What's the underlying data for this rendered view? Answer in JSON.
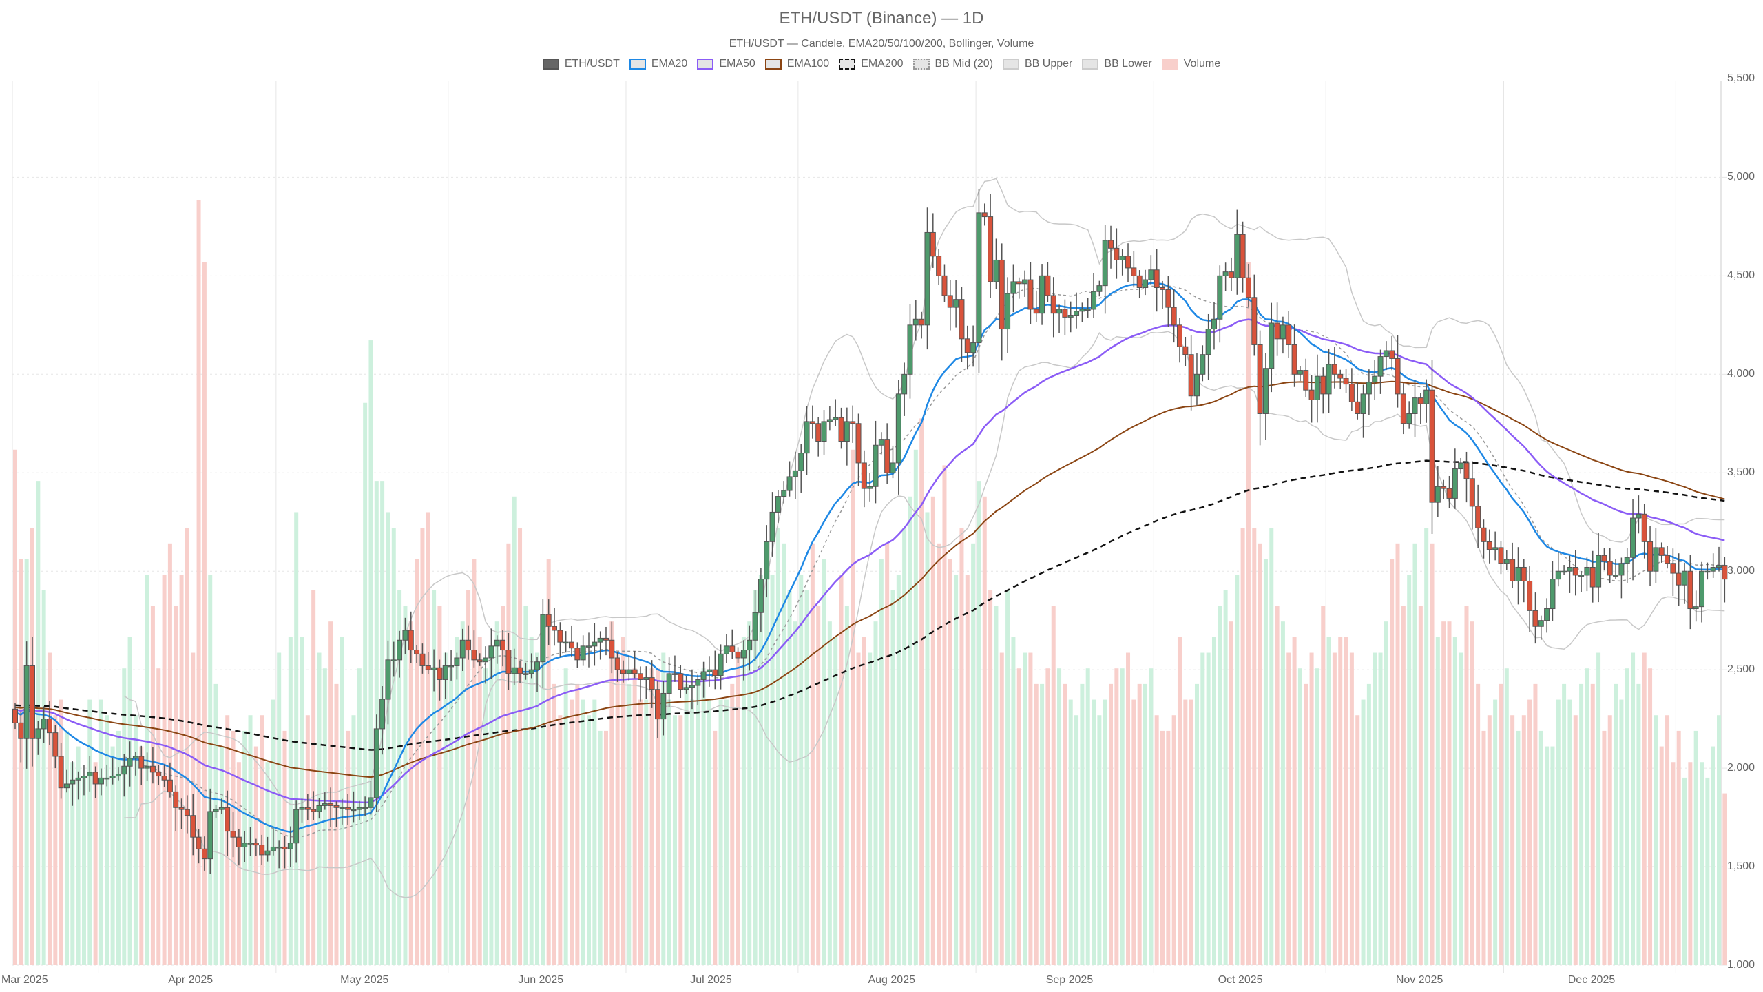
{
  "header": {
    "title": "ETH/USDT (Binance) — 1D",
    "subtitle": "ETH/USDT — Candele, EMA20/50/100/200, Bollinger, Volume"
  },
  "legend": [
    {
      "label": "ETH/USDT",
      "fill": "#666666",
      "border": "#555555",
      "style": "solid"
    },
    {
      "label": "EMA20",
      "fill": "#e5e5e5",
      "border": "#1e88e5",
      "style": "solid"
    },
    {
      "label": "EMA50",
      "fill": "#e5e5e5",
      "border": "#8b5cf6",
      "style": "solid"
    },
    {
      "label": "EMA100",
      "fill": "#e5e5e5",
      "border": "#8b4513",
      "style": "solid"
    },
    {
      "label": "EMA200",
      "fill": "#e5e5e5",
      "border": "#111111",
      "style": "dashed"
    },
    {
      "label": "BB Mid (20)",
      "fill": "#e5e5e5",
      "border": "#999999",
      "style": "dotted"
    },
    {
      "label": "BB Upper",
      "fill": "#e5e5e5",
      "border": "#cccccc",
      "style": "solid"
    },
    {
      "label": "BB Lower",
      "fill": "#e5e5e5",
      "border": "#cccccc",
      "style": "solid"
    },
    {
      "label": "Volume",
      "fill": "#f8cfcb",
      "border": "#f8cfcb",
      "style": "solid"
    }
  ],
  "colors": {
    "up": "#4e9a6c",
    "down": "#d9533b",
    "wick": "#555555",
    "vol_up": "#cdf0dd",
    "vol_down": "#f8cfcb",
    "ema20": "#1e88e5",
    "ema50": "#8b5cf6",
    "ema100": "#8b4513",
    "ema200": "#111111",
    "bb_mid": "#999999",
    "bb_band": "#c8c8c8",
    "grid": "#e6e6e6"
  },
  "axes": {
    "y_ticks": [
      "1,000",
      "1,500",
      "2,000",
      "2,500",
      "3,000",
      "3,500",
      "4,000",
      "4,500",
      "5,000",
      "5,500"
    ],
    "y_values": [
      1000,
      1500,
      2000,
      2500,
      3000,
      3500,
      4000,
      4500,
      5000,
      5500
    ],
    "x_ticks": [
      {
        "label": "Mar 2025",
        "day": 0
      },
      {
        "label": "Apr 2025",
        "day": 31
      },
      {
        "label": "May 2025",
        "day": 61
      },
      {
        "label": "Jun 2025",
        "day": 92
      },
      {
        "label": "Jul 2025",
        "day": 122
      },
      {
        "label": "Aug 2025",
        "day": 153
      },
      {
        "label": "Sep 2025",
        "day": 184
      },
      {
        "label": "Oct 2025",
        "day": 214
      },
      {
        "label": "Nov 2025",
        "day": 245
      },
      {
        "label": "Dec 2025",
        "day": 275
      }
    ],
    "grid_days": [
      14,
      45,
      75,
      106,
      136,
      167,
      198,
      228,
      259,
      289
    ]
  },
  "chart_data": {
    "type": "candlestick",
    "title": "ETH/USDT (Binance) — 1D",
    "subtitle": "ETH/USDT — Candele, EMA20/50/100/200, Bollinger, Volume",
    "xlabel": "",
    "ylabel": "",
    "ylim": [
      1000,
      5500
    ],
    "x_range": [
      "2025-03-01",
      "2025-12-23"
    ],
    "grid": true,
    "legend_position": "top",
    "series": [
      "ETH/USDT",
      "EMA20",
      "EMA50",
      "EMA100",
      "EMA200",
      "BB Mid (20)",
      "BB Upper",
      "BB Lower",
      "Volume"
    ],
    "ema_seed": {
      "ema20": 2290,
      "ema50": 2300,
      "ema100": 2310,
      "ema200": 2320
    },
    "closes": [
      2230,
      2150,
      2520,
      2150,
      2200,
      2250,
      2180,
      2060,
      1900,
      1920,
      1940,
      1950,
      1960,
      1980,
      1920,
      1950,
      1950,
      1960,
      1970,
      2010,
      2050,
      2060,
      2000,
      2010,
      1980,
      1960,
      1940,
      1880,
      1800,
      1790,
      1760,
      1650,
      1590,
      1540,
      1780,
      1790,
      1800,
      1680,
      1650,
      1600,
      1620,
      1620,
      1610,
      1560,
      1580,
      1600,
      1600,
      1590,
      1620,
      1790,
      1800,
      1790,
      1780,
      1810,
      1820,
      1810,
      1800,
      1800,
      1790,
      1790,
      1800,
      1800,
      1850,
      2200,
      2350,
      2550,
      2550,
      2650,
      2700,
      2600,
      2580,
      2520,
      2500,
      2510,
      2450,
      2520,
      2520,
      2560,
      2650,
      2600,
      2550,
      2540,
      2560,
      2620,
      2650,
      2600,
      2480,
      2510,
      2480,
      2480,
      2500,
      2540,
      2780,
      2720,
      2700,
      2640,
      2640,
      2610,
      2550,
      2620,
      2620,
      2640,
      2660,
      2650,
      2560,
      2500,
      2480,
      2500,
      2480,
      2450,
      2460,
      2400,
      2250,
      2380,
      2480,
      2480,
      2400,
      2410,
      2420,
      2450,
      2490,
      2500,
      2470,
      2580,
      2620,
      2590,
      2560,
      2600,
      2650,
      2790,
      2960,
      3150,
      3300,
      3380,
      3410,
      3480,
      3510,
      3600,
      3760,
      3750,
      3660,
      3760,
      3770,
      3780,
      3660,
      3760,
      3750,
      3550,
      3420,
      3430,
      3640,
      3670,
      3500,
      3550,
      3900,
      4000,
      4250,
      4280,
      4250,
      4720,
      4600,
      4500,
      4400,
      4340,
      4380,
      4180,
      4110,
      4160,
      4820,
      4800,
      4470,
      4580,
      4230,
      4410,
      4470,
      4460,
      4480,
      4330,
      4310,
      4500,
      4400,
      4310,
      4330,
      4290,
      4300,
      4320,
      4330,
      4330,
      4420,
      4450,
      4680,
      4640,
      4580,
      4600,
      4540,
      4500,
      4440,
      4480,
      4530,
      4440,
      4430,
      4340,
      4250,
      4140,
      4100,
      3890,
      4000,
      4100,
      4230,
      4280,
      4500,
      4520,
      4490,
      4710,
      4490,
      4390,
      4150,
      3800,
      4030,
      4260,
      4180,
      4250,
      4150,
      4000,
      4020,
      3920,
      3870,
      3990,
      3900,
      4050,
      4000,
      3980,
      3950,
      3860,
      3800,
      3900,
      3960,
      3990,
      4090,
      4120,
      4080,
      3900,
      3750,
      3800,
      3880,
      3850,
      3920,
      3350,
      3430,
      3420,
      3370,
      3520,
      3550,
      3470,
      3330,
      3220,
      3150,
      3110,
      3120,
      3040,
      3060,
      2950,
      3020,
      2950,
      2800,
      2720,
      2750,
      2810,
      2960,
      3000,
      3000,
      3020,
      2980,
      2980,
      3020,
      2920,
      3080,
      3050,
      2980,
      2980,
      3040,
      3070,
      3270,
      3290,
      3150,
      3000,
      3120,
      3080,
      3040,
      2990,
      2930,
      3000,
      2810,
      2820,
      3000,
      3000,
      3020,
      3030,
      2960
    ],
    "volumes": [
      3300,
      2600,
      2600,
      2800,
      3100,
      2400,
      2000,
      1600,
      1700,
      1500,
      1300,
      1400,
      1200,
      1700,
      1300,
      1700,
      1600,
      1400,
      1500,
      1900,
      2100,
      1600,
      1400,
      2500,
      2300,
      1900,
      2500,
      2700,
      2300,
      2500,
      2800,
      2000,
      4900,
      4500,
      2500,
      1800,
      1400,
      1600,
      1500,
      1300,
      1500,
      1600,
      1400,
      1600,
      1300,
      1700,
      2000,
      1500,
      2100,
      2900,
      2100,
      1600,
      2400,
      2000,
      1900,
      2200,
      1800,
      2100,
      1500,
      1600,
      1900,
      3600,
      4000,
      3100,
      3100,
      2900,
      2800,
      2400,
      2300,
      2200,
      2600,
      2800,
      2900,
      2400,
      2300,
      2000,
      1900,
      2100,
      2200,
      2400,
      2600,
      2100,
      1900,
      2000,
      2200,
      2300,
      2700,
      3000,
      2800,
      2300,
      2100,
      2000,
      2100,
      2600,
      1800,
      1600,
      1900,
      1700,
      1800,
      1700,
      1600,
      1700,
      1500,
      1500,
      2200,
      2000,
      2100,
      1800,
      1900,
      1700,
      1700,
      1900,
      1900,
      2000,
      1700,
      1600,
      1600,
      1800,
      1700,
      1800,
      1900,
      1700,
      1500,
      1700,
      1700,
      1800,
      2000,
      2100,
      2200,
      2400,
      2500,
      2600,
      2500,
      2800,
      2700,
      2400,
      2200,
      2500,
      2400,
      2700,
      2300,
      2600,
      2200,
      2100,
      2500,
      2300,
      3300,
      2000,
      2100,
      2000,
      2200,
      2600,
      2700,
      2400,
      2500,
      2800,
      3000,
      3300,
      3500,
      2900,
      3000,
      2700,
      3200,
      2600,
      2500,
      2800,
      2500,
      2700,
      3100,
      3000,
      2400,
      2300,
      2000,
      2400,
      2100,
      1900,
      2000,
      2000,
      1800,
      1800,
      1900,
      2300,
      1900,
      1800,
      1700,
      1600,
      1800,
      1900,
      1700,
      1600,
      1700,
      1800,
      1900,
      1900,
      2000,
      1700,
      1800,
      1800,
      1900,
      1600,
      1500,
      1500,
      1600,
      2100,
      1700,
      1700,
      1800,
      2000,
      2000,
      2100,
      2300,
      2400,
      2200,
      2500,
      2800,
      4500,
      2800,
      2700,
      2600,
      2800,
      2300,
      2200,
      2000,
      2100,
      1900,
      1800,
      2000,
      1900,
      2300,
      2100,
      2000,
      2100,
      2100,
      2000,
      1600,
      1700,
      1800,
      2000,
      2000,
      2200,
      2600,
      2700,
      2300,
      2500,
      2700,
      2300,
      2800,
      2700,
      2100,
      2200,
      2200,
      2100,
      2000,
      2300,
      2200,
      1800,
      1500,
      1600,
      1700,
      1800,
      1900,
      1600,
      1500,
      1600,
      1700,
      1800,
      1500,
      1400,
      1400,
      1700,
      1800,
      1700,
      1600,
      1800,
      1900,
      1800,
      2000,
      1500,
      1600,
      1800,
      1700,
      1900,
      2000,
      1800,
      2000,
      1900,
      1600,
      1400,
      1600,
      1300,
      1500,
      1200,
      1300,
      1500,
      1300,
      1200,
      1400,
      1600,
      1100,
      1500,
      1200,
      1300
    ],
    "volume_max": 4900
  }
}
